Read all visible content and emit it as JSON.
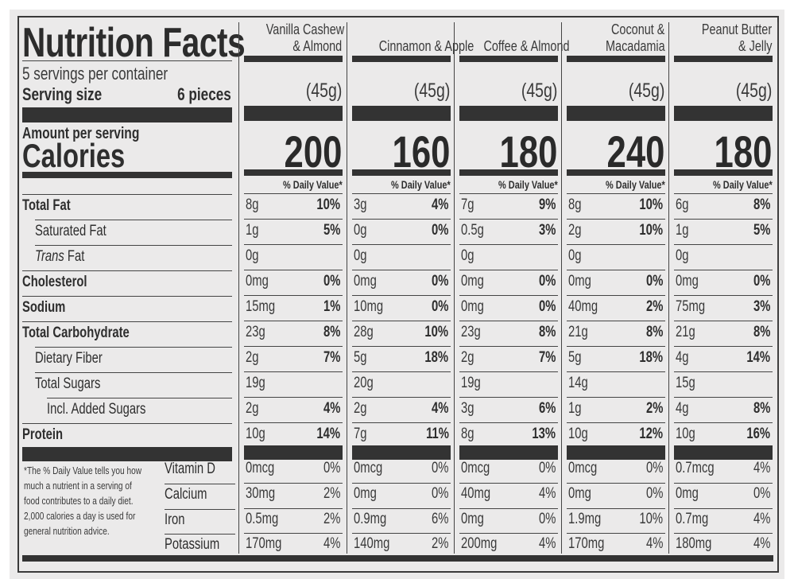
{
  "label": {
    "title": "Nutrition Facts",
    "servings_per_container": "5 servings per container",
    "serving_size_label": "Serving size",
    "serving_size_value": "6 pieces",
    "amount_per_serving": "Amount per serving",
    "calories_label": "Calories",
    "daily_value_header": "% Daily Value*",
    "footnote": [
      "*The % Daily Value tells you how",
      "much a nutrient in a serving of",
      "food contributes to a daily diet.",
      "2,000 calories a day is used for",
      "general nutrition advice."
    ]
  },
  "nutrients": [
    {
      "name": "Total Fat",
      "bold": true,
      "indent": 0
    },
    {
      "name": "Saturated Fat",
      "bold": false,
      "indent": 1
    },
    {
      "name": "Trans Fat",
      "bold": false,
      "indent": 1
    },
    {
      "name": "Cholesterol",
      "bold": true,
      "indent": 0
    },
    {
      "name": "Sodium",
      "bold": true,
      "indent": 0
    },
    {
      "name": "Total Carbohydrate",
      "bold": true,
      "indent": 0
    },
    {
      "name": "Dietary Fiber",
      "bold": false,
      "indent": 1
    },
    {
      "name": "Total Sugars",
      "bold": false,
      "indent": 1
    },
    {
      "name": "Incl. Added Sugars",
      "bold": false,
      "indent": 2
    },
    {
      "name": "Protein",
      "bold": true,
      "indent": 0
    }
  ],
  "vitamins": [
    "Vitamin D",
    "Calcium",
    "Iron",
    "Potassium"
  ],
  "products": [
    {
      "name": [
        "Vanilla Cashew",
        "& Almond"
      ],
      "serving_grams": "(45g)",
      "calories": "200",
      "values": [
        [
          "8g",
          "10%"
        ],
        [
          "1g",
          "5%"
        ],
        [
          "0g",
          ""
        ],
        [
          "0mg",
          "0%"
        ],
        [
          "15mg",
          "1%"
        ],
        [
          "23g",
          "8%"
        ],
        [
          "2g",
          "7%"
        ],
        [
          "19g",
          ""
        ],
        [
          "2g",
          "4%"
        ],
        [
          "10g",
          "14%"
        ]
      ],
      "vitamins": [
        [
          "0mcg",
          "0%"
        ],
        [
          "30mg",
          "2%"
        ],
        [
          "0.5mg",
          "2%"
        ],
        [
          "170mg",
          "4%"
        ]
      ]
    },
    {
      "name": [
        "",
        "Cinnamon & Apple"
      ],
      "serving_grams": "(45g)",
      "calories": "160",
      "values": [
        [
          "3g",
          "4%"
        ],
        [
          "0g",
          "0%"
        ],
        [
          "0g",
          ""
        ],
        [
          "0mg",
          "0%"
        ],
        [
          "10mg",
          "0%"
        ],
        [
          "28g",
          "10%"
        ],
        [
          "5g",
          "18%"
        ],
        [
          "20g",
          ""
        ],
        [
          "2g",
          "4%"
        ],
        [
          "7g",
          "11%"
        ]
      ],
      "vitamins": [
        [
          "0mcg",
          "0%"
        ],
        [
          "0mg",
          "0%"
        ],
        [
          "0.9mg",
          "6%"
        ],
        [
          "140mg",
          "2%"
        ]
      ]
    },
    {
      "name": [
        "",
        "Coffee & Almond"
      ],
      "serving_grams": "(45g)",
      "calories": "180",
      "values": [
        [
          "7g",
          "9%"
        ],
        [
          "0.5g",
          "3%"
        ],
        [
          "0g",
          ""
        ],
        [
          "0mg",
          "0%"
        ],
        [
          "0mg",
          "0%"
        ],
        [
          "23g",
          "8%"
        ],
        [
          "2g",
          "7%"
        ],
        [
          "19g",
          ""
        ],
        [
          "3g",
          "6%"
        ],
        [
          "8g",
          "13%"
        ]
      ],
      "vitamins": [
        [
          "0mcg",
          "0%"
        ],
        [
          "40mg",
          "4%"
        ],
        [
          "0mg",
          "0%"
        ],
        [
          "200mg",
          "4%"
        ]
      ]
    },
    {
      "name": [
        "Coconut &",
        "Macadamia"
      ],
      "serving_grams": "(45g)",
      "calories": "240",
      "values": [
        [
          "8g",
          "10%"
        ],
        [
          "2g",
          "10%"
        ],
        [
          "0g",
          ""
        ],
        [
          "0mg",
          "0%"
        ],
        [
          "40mg",
          "2%"
        ],
        [
          "21g",
          "8%"
        ],
        [
          "5g",
          "18%"
        ],
        [
          "14g",
          ""
        ],
        [
          "1g",
          "2%"
        ],
        [
          "10g",
          "12%"
        ]
      ],
      "vitamins": [
        [
          "0mcg",
          "0%"
        ],
        [
          "0mg",
          "0%"
        ],
        [
          "1.9mg",
          "10%"
        ],
        [
          "170mg",
          "4%"
        ]
      ]
    },
    {
      "name": [
        "Peanut Butter",
        "& Jelly"
      ],
      "serving_grams": "(45g)",
      "calories": "180",
      "values": [
        [
          "6g",
          "8%"
        ],
        [
          "1g",
          "5%"
        ],
        [
          "0g",
          ""
        ],
        [
          "0mg",
          "0%"
        ],
        [
          "75mg",
          "3%"
        ],
        [
          "21g",
          "8%"
        ],
        [
          "4g",
          "14%"
        ],
        [
          "15g",
          ""
        ],
        [
          "4g",
          "8%"
        ],
        [
          "10g",
          "16%"
        ]
      ],
      "vitamins": [
        [
          "0.7mcg",
          "4%"
        ],
        [
          "0mg",
          "0%"
        ],
        [
          "0.7mg",
          "4%"
        ],
        [
          "180mg",
          "4%"
        ]
      ]
    }
  ]
}
